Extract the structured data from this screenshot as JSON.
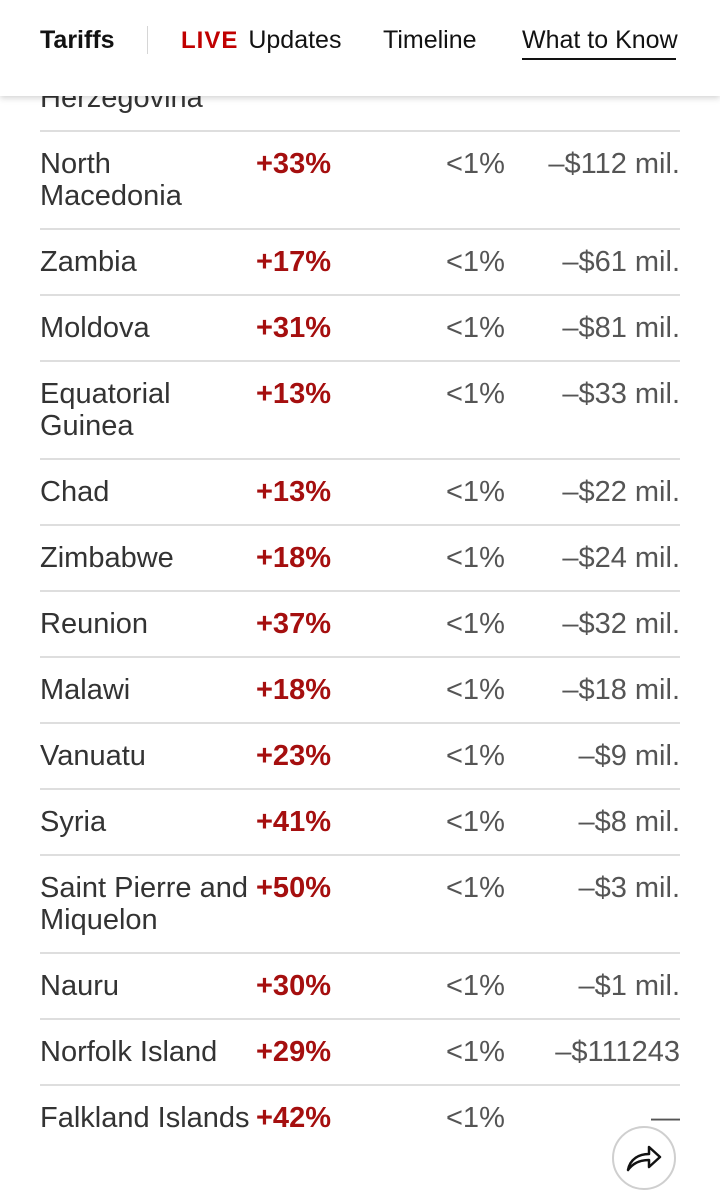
{
  "header": {
    "brand": "Tariffs",
    "live_badge": "LIVE",
    "updates_label": "Updates",
    "timeline_label": "Timeline",
    "what_to_know_label": "What to Know"
  },
  "table": {
    "rows": [
      {
        "country": "Herzegovina",
        "change": "",
        "share": "",
        "impact": ""
      },
      {
        "country": "North Macedonia",
        "change": "+33%",
        "share": "<1%",
        "impact": "–$112 mil."
      },
      {
        "country": "Zambia",
        "change": "+17%",
        "share": "<1%",
        "impact": "–$61 mil."
      },
      {
        "country": "Moldova",
        "change": "+31%",
        "share": "<1%",
        "impact": "–$81 mil."
      },
      {
        "country": "Equatorial Guinea",
        "change": "+13%",
        "share": "<1%",
        "impact": "–$33 mil."
      },
      {
        "country": "Chad",
        "change": "+13%",
        "share": "<1%",
        "impact": "–$22 mil."
      },
      {
        "country": "Zimbabwe",
        "change": "+18%",
        "share": "<1%",
        "impact": "–$24 mil."
      },
      {
        "country": "Reunion",
        "change": "+37%",
        "share": "<1%",
        "impact": "–$32 mil."
      },
      {
        "country": "Malawi",
        "change": "+18%",
        "share": "<1%",
        "impact": "–$18 mil."
      },
      {
        "country": "Vanuatu",
        "change": "+23%",
        "share": "<1%",
        "impact": "–$9 mil."
      },
      {
        "country": "Syria",
        "change": "+41%",
        "share": "<1%",
        "impact": "–$8 mil."
      },
      {
        "country": "Saint Pierre and Miquelon",
        "change": "+50%",
        "share": "<1%",
        "impact": "–$3 mil."
      },
      {
        "country": "Nauru",
        "change": "+30%",
        "share": "<1%",
        "impact": "–$1 mil."
      },
      {
        "country": "Norfolk Island",
        "change": "+29%",
        "share": "<1%",
        "impact": "–$111243"
      },
      {
        "country": "Falkland Islands",
        "change": "+42%",
        "share": "<1%",
        "impact": "—"
      }
    ]
  },
  "share_button": {
    "icon": "share-arrow-icon"
  },
  "colors": {
    "live": "#c00000",
    "change": "#a50f0f"
  }
}
